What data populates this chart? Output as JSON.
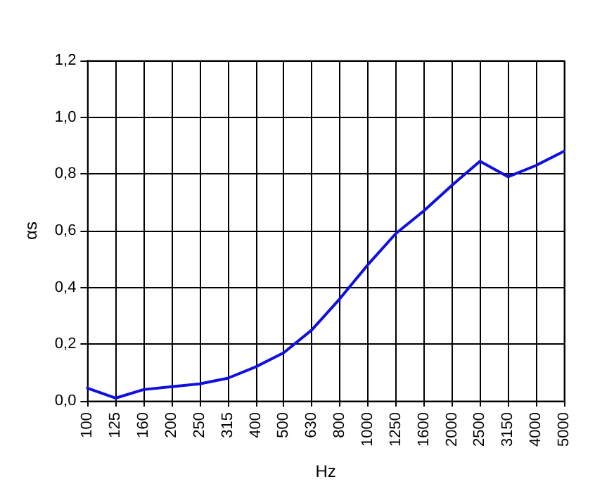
{
  "chart_data": {
    "type": "line",
    "xlabel": "Hz",
    "ylabel": "αs",
    "categories": [
      "100",
      "125",
      "160",
      "200",
      "250",
      "315",
      "400",
      "500",
      "630",
      "800",
      "1000",
      "1250",
      "1600",
      "2000",
      "2500",
      "3150",
      "4000",
      "5000"
    ],
    "series": [
      {
        "color": "#1010dd",
        "values": [
          0.045,
          0.01,
          0.04,
          0.05,
          0.06,
          0.08,
          0.12,
          0.17,
          0.25,
          0.36,
          0.48,
          0.59,
          0.67,
          0.76,
          0.845,
          0.79,
          0.83,
          0.88
        ]
      }
    ],
    "ylim": [
      0,
      1.2
    ],
    "yticks": [
      {
        "value": 0,
        "label": "0,0"
      },
      {
        "value": 0.2,
        "label": "0,2"
      },
      {
        "value": 0.4,
        "label": "0,4"
      },
      {
        "value": 0.6,
        "label": "0,6"
      },
      {
        "value": 0.8,
        "label": "0,8"
      },
      {
        "value": 1,
        "label": "1,0"
      },
      {
        "value": 1.2,
        "label": "1,2"
      }
    ],
    "grid": true,
    "marker": "none",
    "line_style": "solid"
  }
}
